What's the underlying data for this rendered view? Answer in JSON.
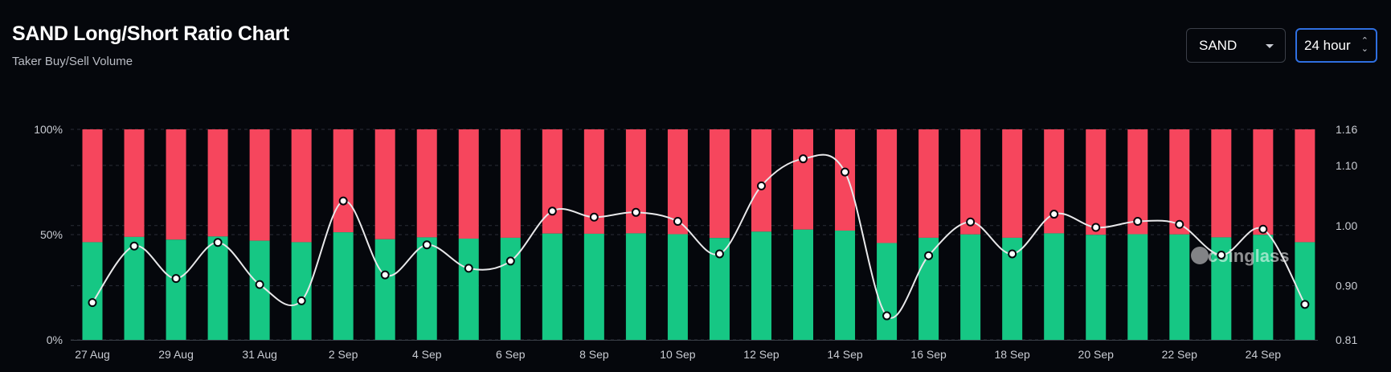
{
  "header": {
    "title": "SAND Long/Short Ratio Chart",
    "subtitle": "Taker Buy/Sell Volume"
  },
  "controls": {
    "coin_select": "SAND",
    "period_select": "24 hour"
  },
  "watermark": "coinglass",
  "colors": {
    "long": "#16c784",
    "short": "#f6465d",
    "ratio_line": "#e8e8ea",
    "background": "#05070c",
    "focus_border": "#2f6fe0"
  },
  "chart_data": {
    "type": "bar",
    "stacked": true,
    "x_tick_labels": [
      "27 Aug",
      "29 Aug",
      "31 Aug",
      "2 Sep",
      "4 Sep",
      "6 Sep",
      "8 Sep",
      "10 Sep",
      "12 Sep",
      "14 Sep",
      "16 Sep",
      "18 Sep",
      "20 Sep",
      "22 Sep",
      "24 Sep"
    ],
    "y_left_ticks": [
      "0%",
      "50%",
      "100%"
    ],
    "y_left_range": [
      0,
      100
    ],
    "y_right_ticks": [
      "0.81",
      "0.90",
      "1.00",
      "1.10",
      "1.16"
    ],
    "y_right_range": [
      0.81,
      1.16
    ],
    "grid": true,
    "series": [
      {
        "axis": "left",
        "type": "bar",
        "color": "#16c784",
        "values": [
          46.4,
          48.9,
          47.6,
          49.1,
          47.1,
          46.4,
          51.1,
          47.8,
          48.7,
          48.1,
          48.5,
          50.5,
          50.4,
          50.6,
          50.2,
          48.4,
          51.4,
          52.4,
          51.9,
          46.0,
          48.5,
          50.1,
          48.5,
          50.6,
          49.9,
          50.2,
          50.1,
          48.7,
          49.9,
          46.4
        ]
      },
      {
        "axis": "left",
        "type": "bar",
        "color": "#f6465d",
        "values": [
          53.6,
          51.1,
          52.4,
          50.9,
          52.9,
          53.6,
          48.9,
          52.2,
          51.3,
          51.9,
          51.5,
          49.5,
          49.6,
          49.4,
          49.8,
          51.6,
          48.6,
          47.6,
          48.1,
          54.0,
          51.5,
          49.9,
          51.5,
          49.4,
          50.1,
          49.8,
          49.9,
          51.3,
          50.1,
          53.6
        ]
      },
      {
        "axis": "right",
        "type": "line",
        "color": "#e8e8ea",
        "values": [
          0.872,
          0.966,
          0.912,
          0.972,
          0.902,
          0.875,
          1.041,
          0.918,
          0.968,
          0.929,
          0.941,
          1.024,
          1.014,
          1.022,
          1.007,
          0.953,
          1.066,
          1.111,
          1.089,
          0.85,
          0.95,
          1.006,
          0.953,
          1.019,
          0.997,
          1.007,
          1.002,
          0.951,
          0.994,
          0.869
        ]
      }
    ]
  }
}
